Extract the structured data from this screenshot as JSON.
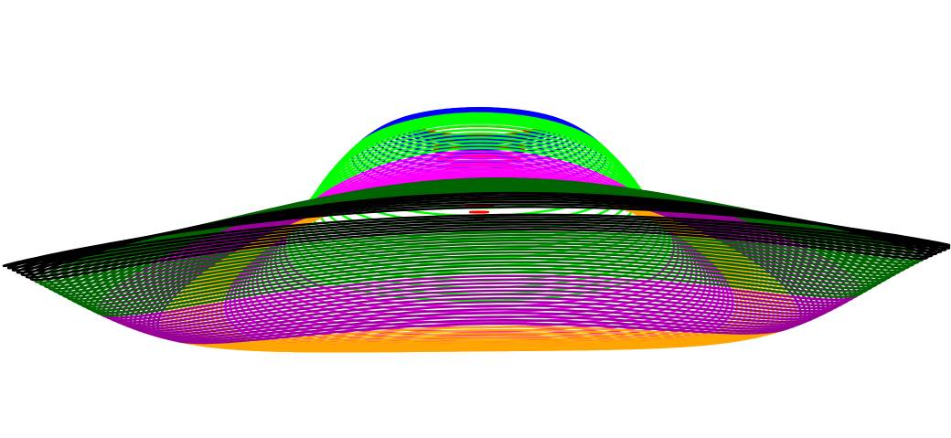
{
  "figure": {
    "description_visible_text": "",
    "background": "#ffffff",
    "palette": [
      {
        "name": "red",
        "hex": "#ff0000",
        "loops": 14
      },
      {
        "name": "blue",
        "hex": "#0000ff",
        "loops": 14
      },
      {
        "name": "green",
        "hex": "#00ff00",
        "loops": 14
      },
      {
        "name": "magenta",
        "hex": "#ff00ff",
        "loops": 14
      },
      {
        "name": "orange",
        "hex": "#ffa500",
        "loops": 14
      },
      {
        "name": "purple",
        "hex": "#990099",
        "loops": 14
      },
      {
        "name": "dark-green",
        "hex": "#006400",
        "loops": 14
      },
      {
        "name": "black",
        "hex": "#000000",
        "loops": 7
      }
    ]
  }
}
